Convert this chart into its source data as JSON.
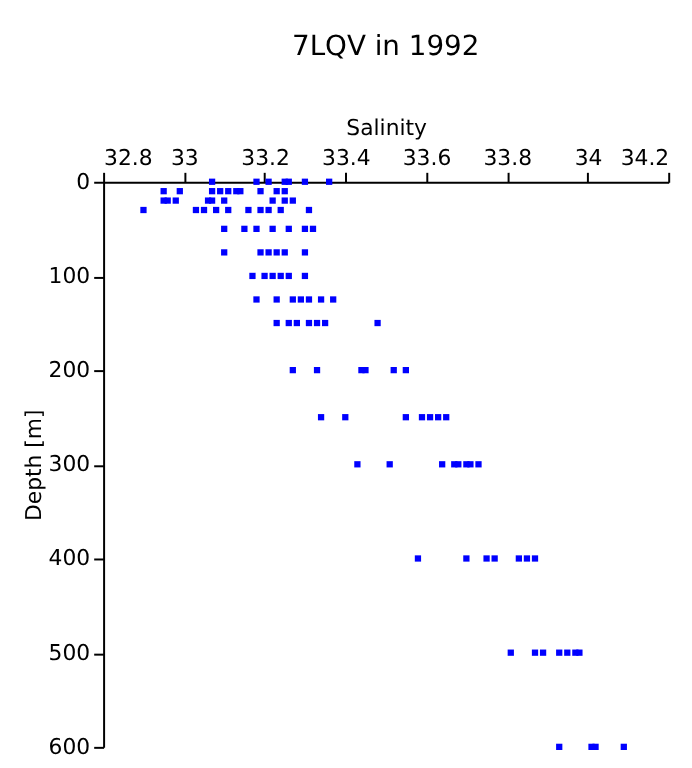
{
  "chart_data": {
    "type": "scatter",
    "title": "7LQV in 1992",
    "xlabel": "Salinity",
    "ylabel": "Depth [m]",
    "xlim": [
      32.8,
      34.2
    ],
    "xticks": [
      32.8,
      33,
      33.2,
      33.4,
      33.6,
      33.8,
      34,
      34.2
    ],
    "ylim": [
      600,
      0
    ],
    "yticks": [
      0,
      100,
      200,
      300,
      400,
      500,
      600
    ],
    "marker": "square",
    "series": [
      {
        "color": "#0000ff",
        "x": [
          33.07,
          33.18,
          33.21,
          33.25,
          33.26,
          33.3,
          33.36,
          32.95,
          32.99,
          33.07,
          33.09,
          33.11,
          33.13,
          33.14,
          33.19,
          33.23,
          33.25,
          32.95,
          32.96,
          32.98,
          33.06,
          33.07,
          33.1,
          33.22,
          33.25,
          33.27,
          32.9,
          33.03,
          33.05,
          33.08,
          33.11,
          33.16,
          33.19,
          33.21,
          33.24,
          33.31,
          33.1,
          33.15,
          33.18,
          33.22,
          33.26,
          33.3,
          33.32,
          33.1,
          33.19,
          33.21,
          33.23,
          33.25,
          33.3,
          33.17,
          33.2,
          33.22,
          33.24,
          33.26,
          33.3,
          33.18,
          33.23,
          33.27,
          33.29,
          33.31,
          33.34,
          33.37,
          33.23,
          33.26,
          33.28,
          33.31,
          33.33,
          33.35,
          33.48,
          33.27,
          33.33,
          33.44,
          33.45,
          33.52,
          33.55,
          33.34,
          33.4,
          33.55,
          33.59,
          33.61,
          33.63,
          33.65,
          33.43,
          33.51,
          33.64,
          33.67,
          33.68,
          33.7,
          33.71,
          33.73,
          33.58,
          33.7,
          33.75,
          33.77,
          33.83,
          33.85,
          33.87,
          33.81,
          33.87,
          33.89,
          33.93,
          33.95,
          33.97,
          33.98,
          33.93,
          34.01,
          34.02,
          34.09
        ],
        "values": [
          0,
          0,
          0,
          0,
          0,
          0,
          0,
          10,
          10,
          10,
          10,
          10,
          10,
          10,
          10,
          10,
          10,
          20,
          20,
          20,
          20,
          20,
          20,
          20,
          20,
          20,
          30,
          30,
          30,
          30,
          30,
          30,
          30,
          30,
          30,
          30,
          50,
          50,
          50,
          50,
          50,
          50,
          50,
          75,
          75,
          75,
          75,
          75,
          75,
          100,
          100,
          100,
          100,
          100,
          100,
          125,
          125,
          125,
          125,
          125,
          125,
          125,
          150,
          150,
          150,
          150,
          150,
          150,
          150,
          200,
          200,
          200,
          200,
          200,
          200,
          250,
          250,
          250,
          250,
          250,
          250,
          250,
          300,
          300,
          300,
          300,
          300,
          300,
          300,
          300,
          400,
          400,
          400,
          400,
          400,
          400,
          400,
          500,
          500,
          500,
          500,
          500,
          500,
          500,
          600,
          600,
          600,
          600
        ]
      }
    ]
  }
}
